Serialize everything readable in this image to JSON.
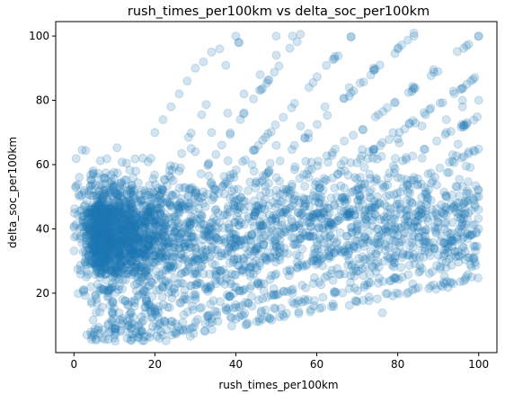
{
  "chart_data": {
    "type": "scatter",
    "title": "rush_times_per100km vs delta_soc_per100km",
    "xlabel": "rush_times_per100km",
    "ylabel": "delta_soc_per100km",
    "xlim": [
      -4.5,
      104.5
    ],
    "ylim": [
      1.5,
      104.5
    ],
    "xticks": [
      0,
      20,
      40,
      60,
      80,
      100
    ],
    "yticks": [
      20,
      40,
      60,
      80,
      100
    ],
    "grid": false,
    "marker_color": "#1f77b4",
    "marker_alpha": 0.2,
    "series": [
      {
        "ray_points": [
          [
            3.1,
            38
          ],
          [
            5.3,
            40
          ],
          [
            7.1,
            43
          ],
          [
            9.1,
            46
          ],
          [
            11.1,
            48
          ],
          [
            13.2,
            52
          ],
          [
            15.3,
            58
          ],
          [
            17,
            62
          ],
          [
            20,
            70
          ],
          [
            22,
            74
          ],
          [
            24,
            78
          ],
          [
            26,
            82
          ],
          [
            28,
            86
          ],
          [
            30,
            90
          ],
          [
            32,
            92
          ],
          [
            34,
            95
          ],
          [
            36,
            96
          ],
          [
            40,
            100
          ],
          [
            50,
            100
          ],
          [
            6.8,
            30
          ],
          [
            10,
            36
          ],
          [
            14,
            40
          ],
          [
            18,
            46
          ],
          [
            22,
            52
          ],
          [
            26,
            58
          ],
          [
            30,
            64
          ],
          [
            34,
            70
          ],
          [
            38,
            76
          ],
          [
            42,
            82
          ],
          [
            46,
            88
          ],
          [
            50,
            94
          ],
          [
            54,
            100
          ],
          [
            8,
            24
          ],
          [
            14,
            30
          ],
          [
            20,
            36
          ],
          [
            26,
            42
          ],
          [
            32,
            48
          ],
          [
            38,
            54
          ],
          [
            44,
            60
          ],
          [
            50,
            66
          ],
          [
            56,
            72
          ],
          [
            62,
            78
          ],
          [
            68,
            84
          ],
          [
            74,
            90
          ],
          [
            80,
            96
          ],
          [
            84,
            100
          ],
          [
            10,
            22
          ],
          [
            18,
            28
          ],
          [
            26,
            34
          ],
          [
            34,
            40
          ],
          [
            42,
            46
          ],
          [
            50,
            52
          ],
          [
            58,
            56
          ],
          [
            66,
            60
          ],
          [
            74,
            64
          ],
          [
            80,
            68
          ],
          [
            86,
            72
          ],
          [
            92,
            74
          ],
          [
            96,
            78
          ],
          [
            100,
            80
          ],
          [
            12,
            18
          ],
          [
            22,
            22
          ],
          [
            32,
            26
          ],
          [
            42,
            30
          ],
          [
            52,
            34
          ],
          [
            62,
            38
          ],
          [
            72,
            42
          ],
          [
            82,
            46
          ],
          [
            92,
            50
          ],
          [
            100,
            52
          ],
          [
            15,
            16
          ],
          [
            25,
            20
          ],
          [
            35,
            24
          ],
          [
            45,
            28
          ],
          [
            55,
            32
          ],
          [
            65,
            36
          ],
          [
            75,
            40
          ],
          [
            85,
            44
          ],
          [
            95,
            48
          ],
          [
            100,
            50
          ],
          [
            20,
            14
          ],
          [
            30,
            18
          ],
          [
            40,
            22
          ],
          [
            50,
            26
          ],
          [
            60,
            30
          ],
          [
            70,
            34
          ],
          [
            80,
            38
          ],
          [
            90,
            42
          ],
          [
            100,
            46
          ],
          [
            24,
            10
          ],
          [
            34,
            12
          ],
          [
            44,
            16
          ],
          [
            54,
            20
          ],
          [
            64,
            24
          ],
          [
            74,
            28
          ],
          [
            84,
            32
          ],
          [
            94,
            36
          ],
          [
            100,
            40
          ],
          [
            9,
            8
          ],
          [
            15,
            10
          ],
          [
            21,
            14
          ],
          [
            27,
            18
          ],
          [
            33,
            22
          ],
          [
            39,
            26
          ],
          [
            45,
            30
          ],
          [
            51,
            34
          ],
          [
            57,
            38
          ],
          [
            63,
            42
          ],
          [
            69,
            46
          ],
          [
            75,
            50
          ],
          [
            80,
            56
          ],
          [
            86,
            62
          ],
          [
            92,
            70
          ],
          [
            96,
            80
          ],
          [
            100,
            100
          ]
        ]
      }
    ]
  }
}
